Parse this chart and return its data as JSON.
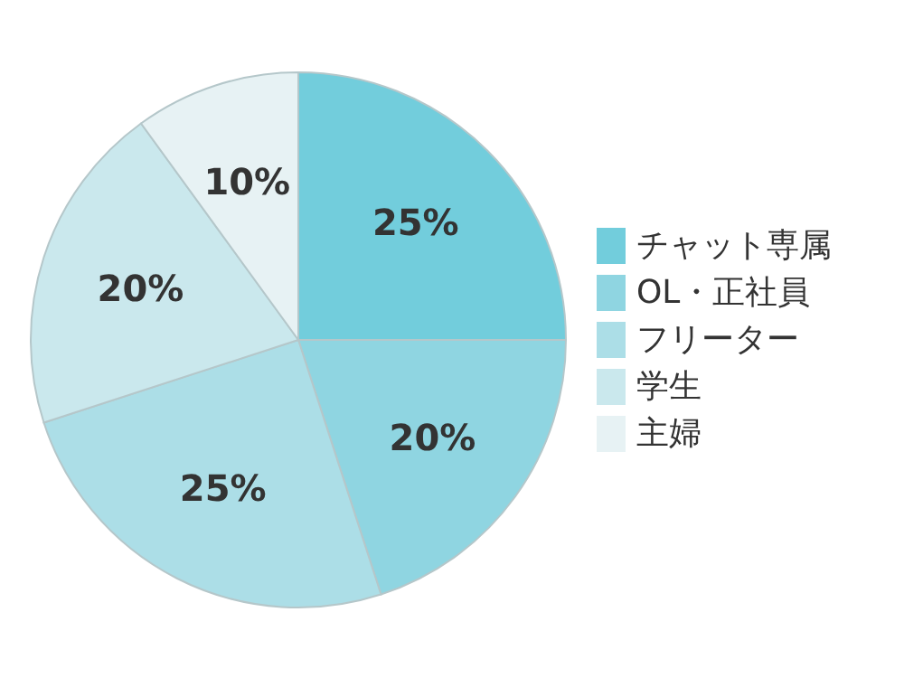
{
  "chart_data": {
    "type": "pie",
    "categories": [
      "チャット専属",
      "OL・正社員",
      "フリーター",
      "学生",
      "主婦"
    ],
    "values": [
      25,
      20,
      25,
      20,
      10
    ],
    "colors": [
      "#72cddc",
      "#8fd5e1",
      "#acdee7",
      "#cae8ed",
      "#e7f2f4"
    ],
    "value_labels": [
      "25%",
      "20%",
      "25%",
      "20%",
      "10%"
    ],
    "legend": "right"
  }
}
